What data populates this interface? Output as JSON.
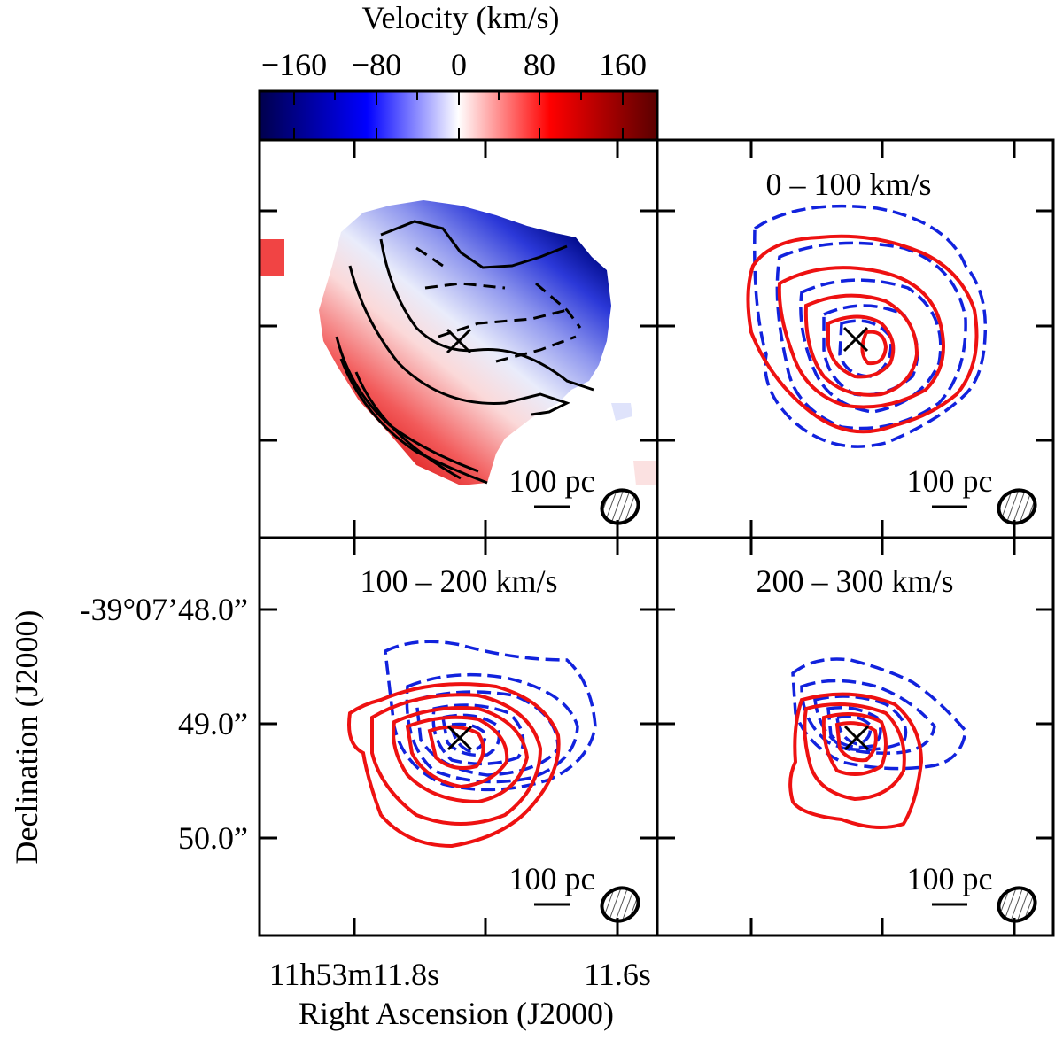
{
  "chart_data": [
    {
      "type": "heatmap",
      "panel": "velocity-field",
      "colorbar": {
        "title": "Velocity (km/s)",
        "range": [
          -200,
          200
        ],
        "tick_values": [
          -160,
          -80,
          0,
          80,
          160
        ],
        "tick_labels": [
          "−160",
          "−80",
          "0",
          "80",
          "160"
        ],
        "colors": [
          "#00004d",
          "#0000ff",
          "#ffffff",
          "#ff0000",
          "#5a0000"
        ]
      },
      "marker": "×",
      "scalebar_label": "100 pc"
    },
    {
      "type": "contour",
      "panel": "channel-0-100",
      "title": "0 – 100 km/s",
      "series": [
        {
          "name": "redshifted",
          "color": "#ee1111",
          "style": "solid",
          "levels": 5
        },
        {
          "name": "blueshifted",
          "color": "#1122dd",
          "style": "dashed",
          "levels": 5
        }
      ],
      "scalebar_label": "100 pc"
    },
    {
      "type": "contour",
      "panel": "channel-100-200",
      "title": "100 – 200 km/s",
      "series": [
        {
          "name": "redshifted",
          "color": "#ee1111",
          "style": "solid",
          "levels": 5
        },
        {
          "name": "blueshifted",
          "color": "#1122dd",
          "style": "dashed",
          "levels": 6
        }
      ],
      "scalebar_label": "100 pc"
    },
    {
      "type": "contour",
      "panel": "channel-200-300",
      "title": "200 – 300 km/s",
      "series": [
        {
          "name": "redshifted",
          "color": "#ee1111",
          "style": "solid",
          "levels": 4
        },
        {
          "name": "blueshifted",
          "color": "#1122dd",
          "style": "dashed",
          "levels": 5
        }
      ],
      "scalebar_label": "100 pc"
    }
  ],
  "axes": {
    "xlabel": "Right Ascension (J2000)",
    "ylabel": "Declination (J2000)",
    "x_tick_labels": [
      "11h53m11.8s",
      "11.6s"
    ],
    "y_tick_labels": [
      "-39°07’48.0”",
      "49.0”",
      "50.0”"
    ]
  },
  "colors": {
    "red": "#ee1111",
    "blue": "#1122dd",
    "frame": "#000000"
  }
}
